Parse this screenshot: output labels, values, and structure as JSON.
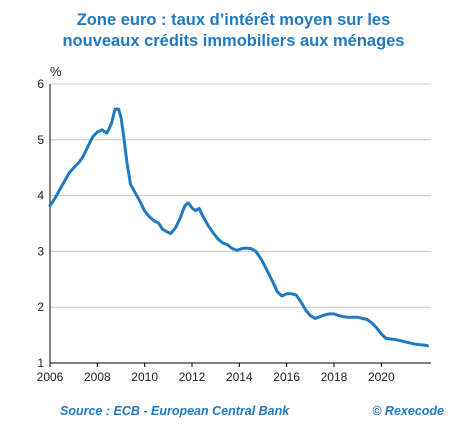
{
  "title_line1": "Zone euro : taux d’intérêt moyen sur les",
  "title_line2": "nouveaux crédits immobiliers aux ménages",
  "footer": {
    "source": "Source : ECB - European Central Bank",
    "credit": "© Rexecode"
  },
  "colors": {
    "title": "#1f7ac2",
    "line": "#1f7ac2",
    "grid": "#c8c8c8",
    "axis": "#000000"
  },
  "chart_data": {
    "type": "line",
    "title": "Zone euro : taux d’intérêt moyen sur les nouveaux crédits immobiliers aux ménages",
    "xlabel": "",
    "ylabel": "%",
    "xlim": [
      2006,
      2022.1
    ],
    "ylim": [
      1,
      6
    ],
    "xticks": [
      2006,
      2008,
      2010,
      2012,
      2014,
      2016,
      2018,
      2020
    ],
    "yticks": [
      1,
      2,
      3,
      4,
      5,
      6
    ],
    "grid": "horizontal",
    "series": [
      {
        "x": [
          2006.0,
          2006.1,
          2006.25,
          2006.4,
          2006.6,
          2006.8,
          2007.0,
          2007.2,
          2007.4,
          2007.6,
          2007.8,
          2008.0,
          2008.2,
          2008.4,
          2008.5,
          2008.6,
          2008.75,
          2008.9,
          2009.0,
          2009.1,
          2009.25,
          2009.4,
          2009.6,
          2009.8,
          2010.0,
          2010.2,
          2010.4,
          2010.6,
          2010.75,
          2010.9,
          2011.1,
          2011.3,
          2011.5,
          2011.7,
          2011.85,
          2012.0,
          2012.15,
          2012.3,
          2012.5,
          2012.7,
          2012.9,
          2013.1,
          2013.3,
          2013.5,
          2013.7,
          2013.9,
          2014.1,
          2014.3,
          2014.5,
          2014.7,
          2014.9,
          2015.1,
          2015.3,
          2015.5,
          2015.6,
          2015.8,
          2016.0,
          2016.2,
          2016.4,
          2016.6,
          2016.8,
          2017.0,
          2017.2,
          2017.4,
          2017.6,
          2017.8,
          2018.0,
          2018.2,
          2018.4,
          2018.6,
          2018.8,
          2019.0,
          2019.2,
          2019.4,
          2019.6,
          2019.8,
          2020.0,
          2020.2,
          2020.4,
          2020.6,
          2020.8,
          2021.0,
          2021.2,
          2021.4,
          2021.6,
          2021.8,
          2021.95
        ],
        "values": [
          3.82,
          3.88,
          3.98,
          4.1,
          4.25,
          4.4,
          4.5,
          4.58,
          4.7,
          4.88,
          5.05,
          5.14,
          5.18,
          5.12,
          5.2,
          5.3,
          5.55,
          5.55,
          5.4,
          5.1,
          4.6,
          4.2,
          4.05,
          3.9,
          3.72,
          3.62,
          3.55,
          3.5,
          3.4,
          3.36,
          3.32,
          3.42,
          3.6,
          3.82,
          3.87,
          3.78,
          3.73,
          3.77,
          3.6,
          3.45,
          3.33,
          3.22,
          3.15,
          3.12,
          3.05,
          3.02,
          3.05,
          3.06,
          3.05,
          3.0,
          2.88,
          2.72,
          2.55,
          2.38,
          2.28,
          2.2,
          2.24,
          2.24,
          2.22,
          2.1,
          1.95,
          1.85,
          1.8,
          1.83,
          1.86,
          1.88,
          1.88,
          1.85,
          1.83,
          1.82,
          1.82,
          1.82,
          1.8,
          1.78,
          1.72,
          1.63,
          1.52,
          1.44,
          1.43,
          1.42,
          1.4,
          1.38,
          1.36,
          1.34,
          1.33,
          1.32,
          1.31
        ]
      }
    ]
  }
}
